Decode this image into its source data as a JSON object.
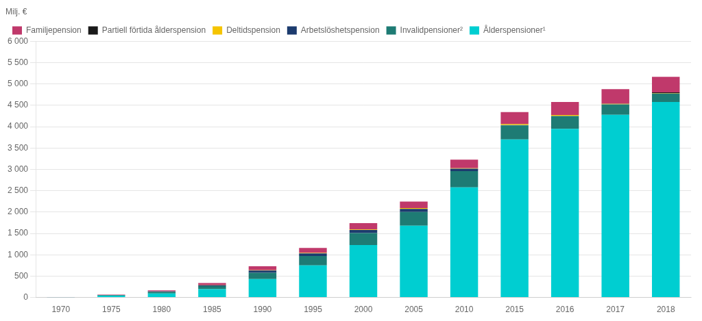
{
  "chart_data": {
    "type": "bar",
    "ylabel": "Milj. €",
    "categories": [
      "1970",
      "1975",
      "1980",
      "1985",
      "1990",
      "1995",
      "2000",
      "2005",
      "2010",
      "2015",
      "2016",
      "2017",
      "2018"
    ],
    "series": [
      {
        "name": "Ålderspensioner¹",
        "color": "#00CED1",
        "values": [
          5,
          40,
          95,
          195,
          430,
          750,
          1230,
          1680,
          2580,
          3700,
          3950,
          4280,
          4580
        ]
      },
      {
        "name": "Invalidpensioner²",
        "color": "#1E7B74",
        "values": [
          2,
          15,
          40,
          70,
          150,
          220,
          280,
          320,
          380,
          330,
          295,
          240,
          195
        ]
      },
      {
        "name": "Arbetslöshetspension",
        "color": "#1C3B6E",
        "values": [
          0,
          2,
          5,
          20,
          50,
          60,
          70,
          75,
          55,
          8,
          4,
          2,
          2
        ]
      },
      {
        "name": "Deltidspension",
        "color": "#F5C400",
        "values": [
          0,
          0,
          0,
          5,
          10,
          12,
          15,
          18,
          12,
          25,
          25,
          12,
          5
        ]
      },
      {
        "name": "Partiell förtida ålderspension",
        "color": "#1a1a1a",
        "values": [
          0,
          0,
          0,
          0,
          0,
          0,
          0,
          0,
          0,
          0,
          0,
          5,
          20
        ]
      },
      {
        "name": "Familjepension",
        "color": "#C0396B",
        "values": [
          3,
          10,
          25,
          50,
          90,
          120,
          145,
          155,
          200,
          280,
          305,
          340,
          365
        ]
      }
    ],
    "stacked": true,
    "ylim": [
      0,
      6000
    ],
    "yticks": [
      0,
      500,
      {
        "value": 1000,
        "label": "1 000"
      },
      {
        "value": 1500,
        "label": "1 500"
      },
      {
        "value": 2000,
        "label": "2 000"
      },
      {
        "value": 2500,
        "label": "2 500"
      },
      {
        "value": 3000,
        "label": "3 000"
      },
      {
        "value": 3500,
        "label": "3 500"
      },
      {
        "value": 4000,
        "label": "4 000"
      },
      {
        "value": 4500,
        "label": "4 500"
      },
      {
        "value": 5000,
        "label": "5 000"
      },
      {
        "value": 5500,
        "label": "5 500"
      },
      {
        "value": 6000,
        "label": "6 000"
      }
    ],
    "grid": true,
    "legend": "upper left"
  }
}
